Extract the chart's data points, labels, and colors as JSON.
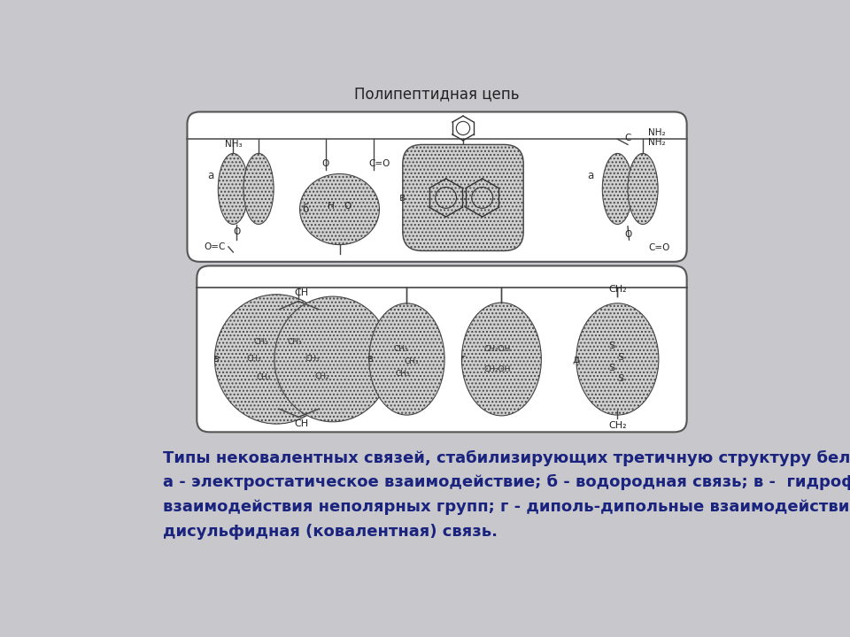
{
  "bg_color": "#c8c8cc",
  "diagram_bg": "#ffffff",
  "title_text": "Полипептидная цепь",
  "caption_lines": [
    "Типы нековалентных связей, стабилизирующих третичную структуру белка.",
    "а - электростатическое взаимодействие; б - водородная связь; в -  гидрофобные",
    "взаимодействия неполярных групп; г - диполь-дипольные взаимодействия; д -",
    "дисульфидная (ковалентная) связь."
  ],
  "caption_color": "#1a237e",
  "caption_fontsize": 13.0
}
